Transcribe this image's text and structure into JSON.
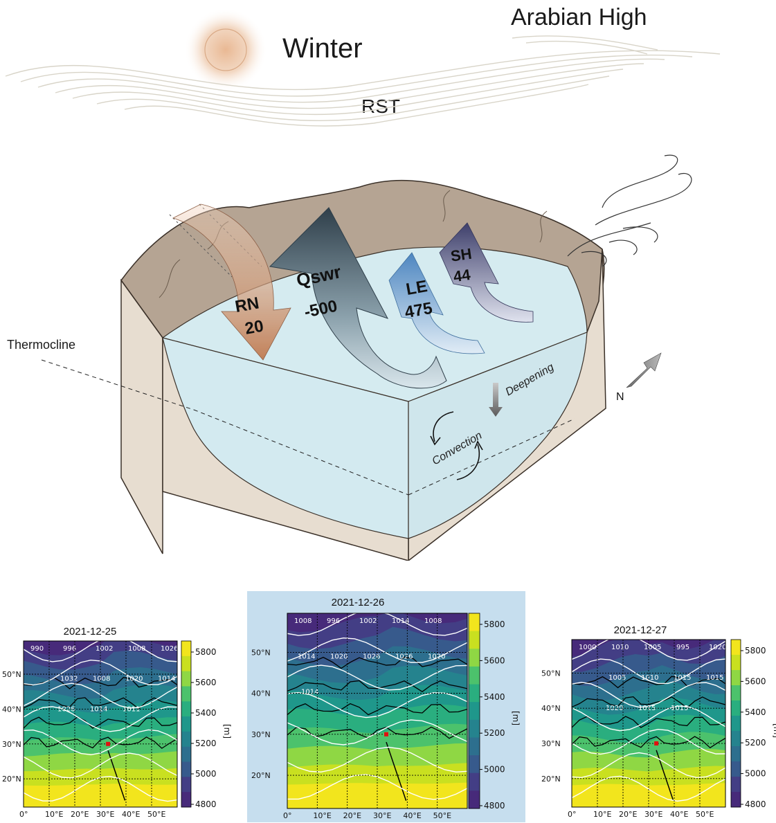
{
  "header": {
    "season": "Winter",
    "high_pressure": "Arabian High",
    "trough": "RST"
  },
  "diagram": {
    "thermocline_label": "Thermocline",
    "north_label": "N",
    "deepening_label": "Deepening",
    "convection_label": "Convection",
    "fluxes": [
      {
        "abbr": "RN",
        "value": "20"
      },
      {
        "abbr": "Qswr",
        "value": "-500"
      },
      {
        "abbr": "LE",
        "value": "475"
      },
      {
        "abbr": "SH",
        "value": "44"
      }
    ]
  },
  "maps": [
    {
      "date": "2021-12-25",
      "colorbar_ticks": [
        "5800",
        "5600",
        "5400",
        "5200",
        "5000",
        "4800"
      ],
      "colorbar_unit": "[m]",
      "lat_ticks": [
        "50°N",
        "40°N",
        "30°N",
        "20°N"
      ],
      "lon_ticks": [
        "0°",
        "10°E",
        "20°E",
        "30°E",
        "40°E",
        "50°E"
      ],
      "isobars": [
        "990",
        "996",
        "1002",
        "1008",
        "1026",
        "1032",
        "1008",
        "1020",
        "1014",
        "1026",
        "1014",
        "1011"
      ]
    },
    {
      "date": "2021-12-26",
      "colorbar_ticks": [
        "5800",
        "5600",
        "5400",
        "5200",
        "5000",
        "4800"
      ],
      "colorbar_unit": "[m]",
      "lat_ticks": [
        "50°N",
        "40°N",
        "30°N",
        "20°N"
      ],
      "lon_ticks": [
        "0°",
        "10°E",
        "20°E",
        "30°E",
        "40°E",
        "50°E"
      ],
      "isobars": [
        "1008",
        "996",
        "1002",
        "1014",
        "1008",
        "1014",
        "1020",
        "1026",
        "1026",
        "1020",
        "1014"
      ]
    },
    {
      "date": "2021-12-27",
      "colorbar_ticks": [
        "5800",
        "5600",
        "5400",
        "5200",
        "5000",
        "4800"
      ],
      "colorbar_unit": "[m]",
      "lat_ticks": [
        "50°N",
        "40°N",
        "30°N",
        "20°N"
      ],
      "lon_ticks": [
        "0°",
        "10°E",
        "20°E",
        "30°E",
        "40°E",
        "50°E"
      ],
      "isobars": [
        "1000",
        "1010",
        "1005",
        "995",
        "1020",
        "1005",
        "1010",
        "1015",
        "1015",
        "1020",
        "1015",
        "1015"
      ]
    }
  ],
  "colors": {
    "water": "#d6ecf1",
    "land_top": "#b4a392",
    "land_side": "#e4dccf",
    "rn_arrow": "#c9855c",
    "qswr_arrow": "#3d4e5a",
    "le_arrow": "#5f93c7",
    "sh_arrow": "#4a4f7a",
    "highlight_panel": "#c6deee"
  }
}
